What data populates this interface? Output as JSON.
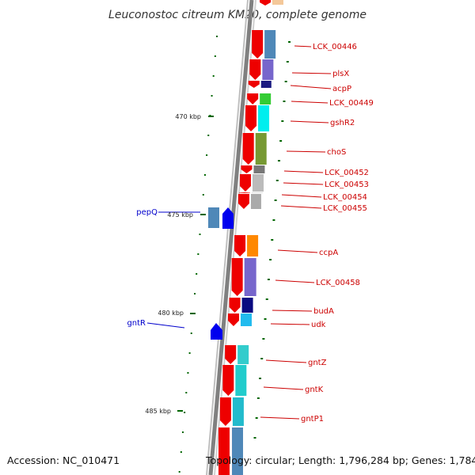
{
  "title": "Leuconostoc citreum KM20, complete genome",
  "accession": "Accession: NC_010471",
  "topology": "Topology: circular; Length: 1,796,284 bp; Genes: 1,784",
  "colors": {
    "forward_arrow": "#ee0000",
    "forward_label": "#cc0000",
    "reverse_arrow": "#0000ee",
    "reverse_label": "#0000cc",
    "tick": "#006600",
    "backbone": "#808080"
  },
  "kbp_labels": [
    "470 kbp",
    "475 kbp",
    "480 kbp",
    "485 kbp"
  ],
  "forward_genes": [
    {
      "name": "LCK_00446",
      "color": "#4f88b8"
    },
    {
      "name": "plsX",
      "color": "#7766cc"
    },
    {
      "name": "acpP",
      "color": "#1a1a80"
    },
    {
      "name": "LCK_00449",
      "color": "#33cc33"
    },
    {
      "name": "gshR2",
      "color": "#00eeee"
    },
    {
      "name": "choS",
      "color": "#779933"
    },
    {
      "name": "LCK_00452",
      "color": "#777777"
    },
    {
      "name": "LCK_00453",
      "color": "#bbbbbb"
    },
    {
      "name": "LCK_00454",
      "color": "#dddddd"
    },
    {
      "name": "LCK_00455",
      "color": "#aaaaaa"
    },
    {
      "name": "ccpA",
      "color": "#ff8800"
    },
    {
      "name": "LCK_00458",
      "color": "#7766cc"
    },
    {
      "name": "budA",
      "color": "#0a0a80"
    },
    {
      "name": "udk",
      "color": "#22bbee"
    },
    {
      "name": "gntZ",
      "color": "#33cccc"
    },
    {
      "name": "gntK",
      "color": "#22cccc"
    },
    {
      "name": "gntP1",
      "color": "#22bbcc"
    }
  ],
  "reverse_genes": [
    {
      "name": "pepQ",
      "color": "#4f88b8"
    },
    {
      "name": "gntR",
      "color": "#0000ee"
    }
  ]
}
